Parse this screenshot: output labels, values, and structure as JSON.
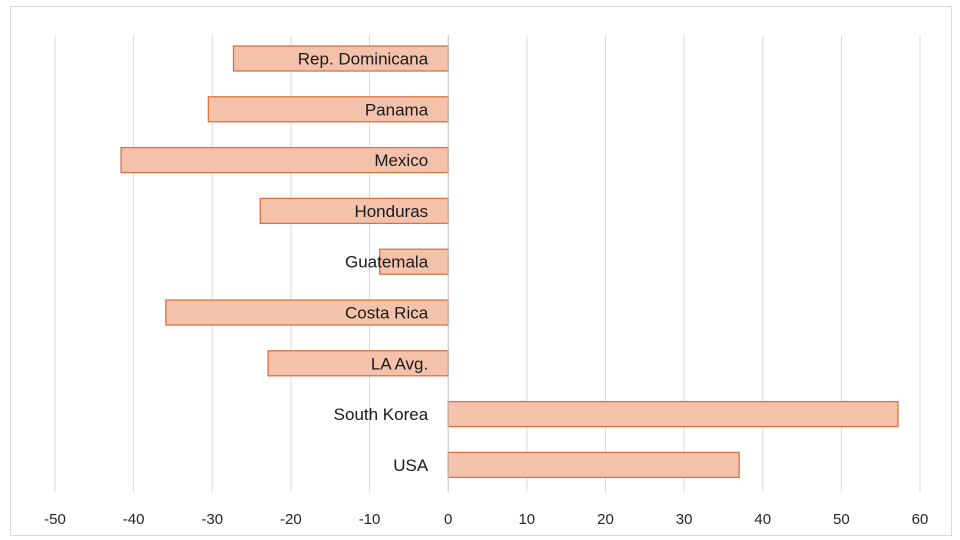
{
  "chart_data": {
    "type": "bar",
    "orientation": "horizontal",
    "categories": [
      "Rep. Dominicana",
      "Panama",
      "Mexico",
      "Honduras",
      "Guatemala",
      "Costa Rica",
      "LA Avg.",
      "South Korea",
      "USA"
    ],
    "values": [
      -27.3,
      -30.5,
      -41.6,
      -23.9,
      -8.7,
      -35.9,
      -22.9,
      57.2,
      37.0
    ],
    "title": "",
    "xlabel": "",
    "ylabel": "",
    "xlim": [
      -50,
      60
    ],
    "xticks": [
      "-50",
      "-40",
      "-30",
      "-20",
      "-10",
      "0",
      "10",
      "20",
      "30",
      "40",
      "50",
      "60"
    ],
    "grid": true,
    "legend": "none",
    "colors": {
      "bar_fill": "#f4c2ab",
      "bar_stroke": "#d9733f",
      "grid": "#d9d9d9",
      "axis": "#bfbfbf"
    }
  }
}
